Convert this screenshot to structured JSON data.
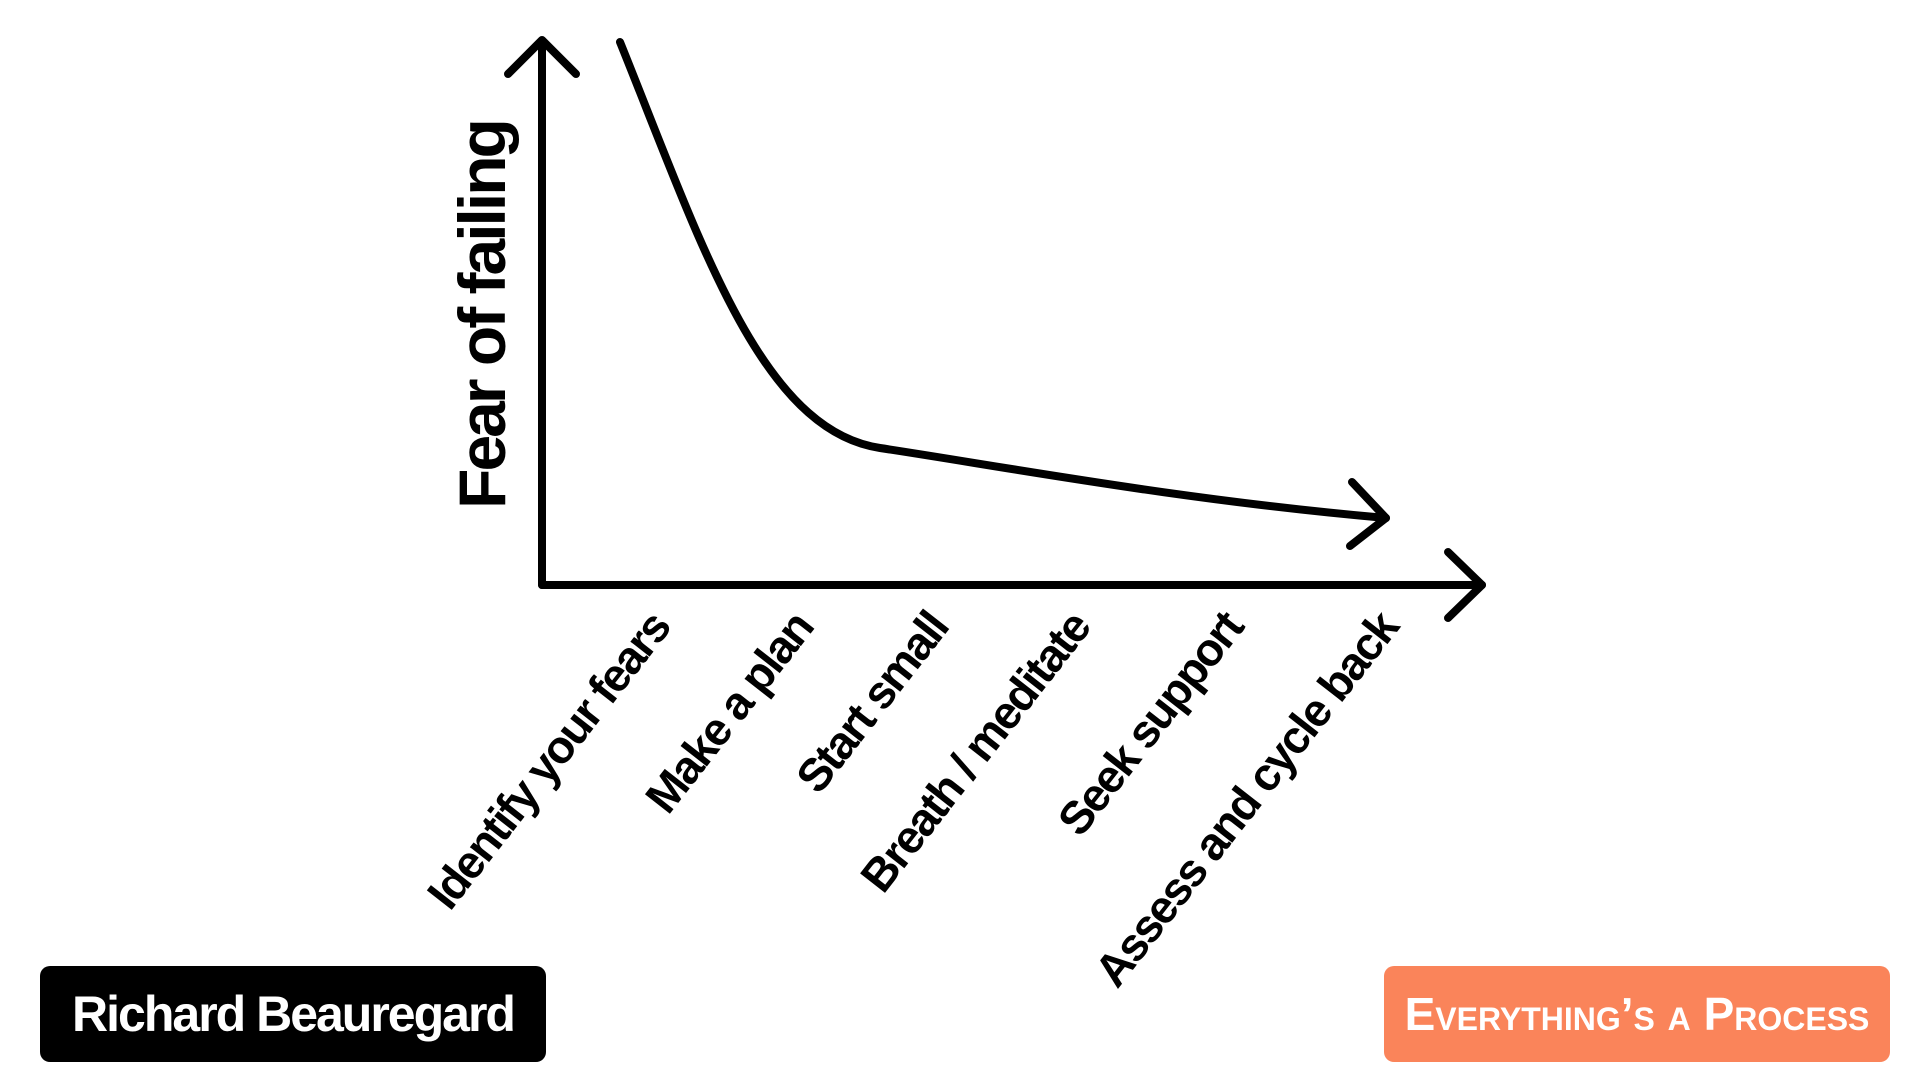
{
  "diagram": {
    "y_axis_label": "Fear of failing",
    "steps": [
      "Identify your fears",
      "Make a plan",
      "Start small",
      "Breath / meditate",
      "Seek support",
      "Assess and cycle back"
    ],
    "curve_trend": "decreasing",
    "line_color": "#000000"
  },
  "footer": {
    "author": "Richard Beauregard",
    "series_title": "Everything’s a Process",
    "author_badge_color": "#000000",
    "series_badge_color": "#fa845a"
  }
}
